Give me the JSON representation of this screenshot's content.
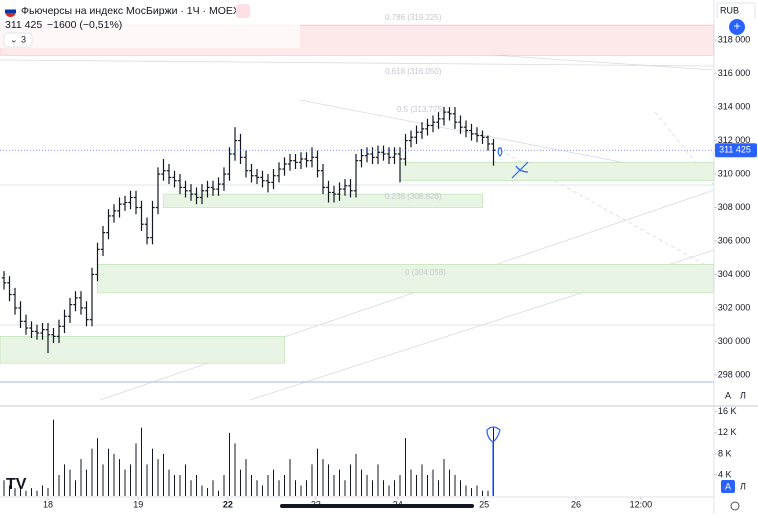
{
  "header": {
    "symbol": "Фьючерсы на индекс МосБиржи · 1Ч · MOEX",
    "last": "311 425",
    "change": "−1600 (−0,51%)",
    "indicators": "3",
    "currency": "RUB",
    "auto": "А",
    "log": "Л"
  },
  "chart_data": {
    "type": "ohlc",
    "series": [
      {
        "color": "#131722",
        "open": [
          303800,
          303500,
          302800,
          302000,
          301200,
          300800,
          300600,
          300500,
          300700,
          300400,
          300300,
          300900,
          301500,
          302200,
          302600,
          302000,
          301300,
          304000,
          305500,
          306500,
          307500,
          307800,
          308200,
          308300,
          308600,
          308000,
          307000,
          306200,
          308000,
          310000,
          310200,
          309800,
          309600,
          309200,
          309000,
          308800,
          308600,
          309000,
          309200,
          309100,
          309400,
          310000,
          311200,
          312000,
          311000,
          310200,
          309900,
          309800,
          309600,
          309500,
          309900,
          310300,
          310600,
          310800,
          310700,
          310900,
          310800,
          311000,
          310200,
          309200,
          308900,
          308800,
          309100,
          309300,
          309000,
          310800,
          311100,
          311200,
          311000,
          311300,
          311200,
          311000,
          311200,
          310900,
          312000,
          312200,
          312500,
          312700,
          312900,
          313100,
          313300,
          313700,
          313600,
          313100,
          312800,
          312600,
          312400,
          312300,
          312200,
          311800
        ],
        "high": [
          304200,
          303900,
          303200,
          302400,
          301600,
          301200,
          301000,
          301100,
          301100,
          300800,
          301300,
          301900,
          302600,
          303000,
          303000,
          302400,
          304400,
          305900,
          306900,
          307900,
          308200,
          308600,
          308700,
          309000,
          309000,
          308400,
          307400,
          308400,
          310400,
          310900,
          310600,
          310200,
          310000,
          309600,
          309400,
          309200,
          309400,
          309600,
          309600,
          309800,
          310400,
          311600,
          312800,
          312400,
          311400,
          310600,
          310300,
          310200,
          310000,
          310300,
          310700,
          311000,
          311200,
          311200,
          311300,
          311300,
          311600,
          311400,
          310600,
          309600,
          309300,
          309500,
          309700,
          309700,
          311200,
          311500,
          311600,
          311600,
          311700,
          311700,
          311600,
          311600,
          311600,
          312400,
          312600,
          312900,
          313100,
          313300,
          313500,
          313700,
          314000,
          314000,
          314000,
          313500,
          313200,
          313000,
          312800,
          312600,
          312300,
          312100
        ],
        "low": [
          303100,
          302400,
          301600,
          300800,
          300400,
          300200,
          300100,
          300100,
          299300,
          299900,
          299900,
          300500,
          301100,
          301800,
          301600,
          300900,
          300900,
          303600,
          305100,
          306100,
          307100,
          307400,
          307800,
          307900,
          307600,
          306600,
          305800,
          305800,
          307600,
          309600,
          309400,
          309200,
          308800,
          308600,
          308400,
          308200,
          308200,
          308600,
          308700,
          308700,
          309000,
          309600,
          310800,
          310600,
          309800,
          309500,
          309400,
          309200,
          308900,
          309100,
          309500,
          309900,
          310200,
          310300,
          310300,
          310400,
          310400,
          309800,
          308800,
          308300,
          308300,
          308400,
          308700,
          308600,
          308600,
          310400,
          310700,
          310600,
          310600,
          310800,
          310600,
          310600,
          309500,
          310500,
          311600,
          311800,
          312100,
          312300,
          312500,
          312700,
          312900,
          313200,
          312700,
          312400,
          312200,
          312000,
          311900,
          311800,
          311400,
          310500
        ],
        "close": [
          303500,
          302800,
          302000,
          301200,
          300800,
          300600,
          300500,
          300700,
          300400,
          300300,
          300900,
          301500,
          302200,
          302600,
          302000,
          301300,
          304000,
          305500,
          306500,
          307500,
          307800,
          308200,
          308300,
          308600,
          308000,
          307000,
          306200,
          308000,
          310000,
          310200,
          309800,
          309600,
          309200,
          309000,
          308800,
          308600,
          309000,
          309200,
          309100,
          309400,
          310000,
          311200,
          312000,
          311000,
          310200,
          309900,
          309800,
          309600,
          309500,
          309900,
          310300,
          310600,
          310800,
          310700,
          310900,
          310800,
          311000,
          310200,
          309200,
          308900,
          308800,
          309100,
          309300,
          309000,
          310800,
          311100,
          311200,
          311000,
          311300,
          311200,
          311000,
          311200,
          310900,
          312000,
          312200,
          312500,
          312700,
          312900,
          313100,
          313300,
          313700,
          313600,
          313100,
          312800,
          312600,
          312400,
          312300,
          312200,
          311800,
          311425
        ]
      }
    ],
    "ylim": [
      296200,
      320400
    ],
    "yticks": [
      {
        "value": 298000,
        "label": "298 000"
      },
      {
        "value": 300000,
        "label": "300 000"
      },
      {
        "value": 302000,
        "label": "302 000"
      },
      {
        "value": 304000,
        "label": "304 000"
      },
      {
        "value": 306000,
        "label": "306 000"
      },
      {
        "value": 308000,
        "label": "308 000"
      },
      {
        "value": 310000,
        "label": "310 000"
      },
      {
        "value": 312000,
        "label": "312 000"
      },
      {
        "value": 314000,
        "label": "314 000"
      },
      {
        "value": 316000,
        "label": "316 000"
      },
      {
        "value": 318000,
        "label": "318 000"
      }
    ],
    "xticks": [
      {
        "value": 8,
        "label": "18"
      },
      {
        "value": 24.4,
        "label": "19"
      },
      {
        "value": 40.7,
        "label": "22"
      },
      {
        "value": 56.7,
        "label": "23"
      },
      {
        "value": 71.6,
        "label": "24"
      },
      {
        "value": 87.3,
        "label": "25"
      },
      {
        "value": 104,
        "label": "26"
      },
      {
        "value": 115.8,
        "label": "12:00"
      }
    ],
    "last_price": {
      "value": 311425,
      "label": "311 425",
      "color": "#2962ff"
    },
    "zones": [
      {
        "top": 318900,
        "bottom": 317100,
        "from": -1,
        "to": 129,
        "color": "#fde8ea"
      },
      {
        "top": 310700,
        "bottom": 309600,
        "from": 72,
        "to": 129,
        "color": "#e8f5e4"
      },
      {
        "top": 308800,
        "bottom": 308000,
        "from": 29,
        "to": 87,
        "color": "#e8f5e4"
      },
      {
        "top": 304600,
        "bottom": 302900,
        "from": 17,
        "to": 129,
        "color": "#e8f5e4"
      },
      {
        "top": 300300,
        "bottom": 298700,
        "from": -1,
        "to": 51,
        "color": "#e8f5e4"
      }
    ],
    "fib_labels": [
      "0.786 (319.225)",
      "0.618 (316.050)",
      "0.5 (313.775)",
      "0.236 (308.828)",
      "0 (304.058)"
    ],
    "volume": {
      "color": "#131722",
      "ylim": [
        0,
        17.1
      ],
      "yticks": [
        {
          "value": 4,
          "label": "4 K"
        },
        {
          "value": 8,
          "label": "8 K"
        },
        {
          "value": 12,
          "label": "12 K"
        },
        {
          "value": 16,
          "label": "16 K"
        }
      ],
      "values": [
        3,
        2,
        1.5,
        2,
        1,
        1.5,
        1,
        2,
        1.5,
        14.5,
        4,
        6,
        5,
        3,
        7,
        5,
        9,
        11,
        6,
        9,
        8,
        7,
        5,
        6,
        10,
        13,
        6,
        9,
        7,
        8,
        5,
        4,
        4,
        6,
        3,
        4,
        2,
        1.5,
        3,
        1,
        4,
        12,
        10,
        5,
        7,
        4,
        3,
        2,
        4,
        5,
        3,
        4,
        7,
        3,
        2,
        3,
        6,
        9,
        7,
        6,
        4,
        5,
        3,
        6,
        8,
        5,
        4,
        3,
        6,
        3,
        2,
        3,
        4,
        11,
        5,
        4,
        6,
        4,
        5,
        3,
        7,
        5,
        4,
        3,
        2,
        1.5,
        2,
        1,
        1,
        13
      ]
    }
  }
}
